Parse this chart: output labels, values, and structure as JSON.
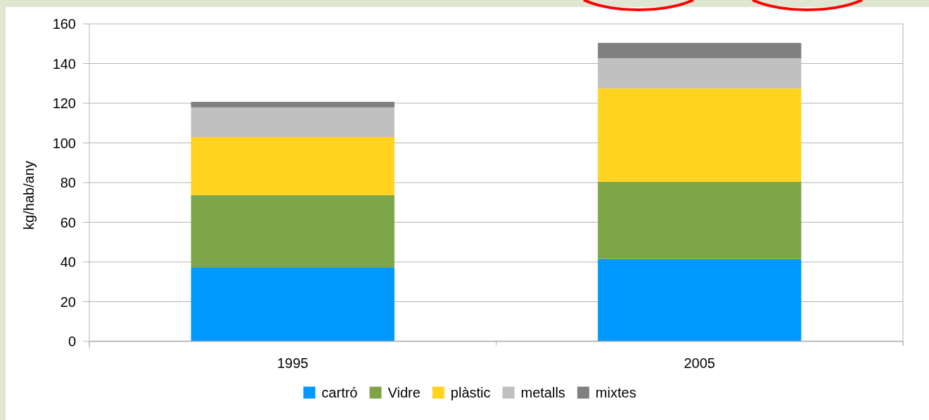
{
  "chart_data": {
    "type": "bar",
    "stacked": true,
    "ylabel": "kg/hab/any",
    "categories": [
      "1995",
      "2005"
    ],
    "series": [
      {
        "name": "cartró",
        "color": "#0099ff",
        "values": [
          37.2,
          41.5
        ]
      },
      {
        "name": "Vidre",
        "color": "#7ea648",
        "values": [
          36.5,
          38.9
        ]
      },
      {
        "name": "plàstic",
        "color": "#ffd320",
        "values": [
          29.3,
          47.1
        ]
      },
      {
        "name": "metalls",
        "color": "#c0c0c0",
        "values": [
          14.9,
          15.2
        ]
      },
      {
        "name": "mixtes",
        "color": "#808080",
        "values": [
          2.8,
          7.7
        ]
      }
    ],
    "ylim": [
      0,
      160
    ],
    "yticks": [
      0,
      20,
      40,
      60,
      80,
      100,
      120,
      140,
      160
    ],
    "grid": "y",
    "legend": "bottom"
  }
}
